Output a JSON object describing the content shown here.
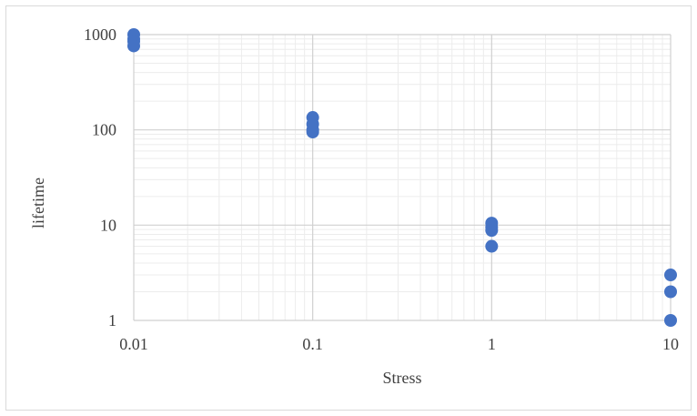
{
  "chart_data": {
    "type": "scatter",
    "title": "",
    "xlabel": "Stress",
    "ylabel": "lifetime",
    "x_scale": "log",
    "y_scale": "log",
    "xlim": [
      0.01,
      10
    ],
    "ylim": [
      1,
      1000
    ],
    "x_ticks": [
      "0.01",
      "0.1",
      "1",
      "10"
    ],
    "y_ticks": [
      "1",
      "10",
      "100",
      "1000"
    ],
    "grid": true,
    "legend": "none",
    "marker_color": "#4472C4",
    "series": [
      {
        "points": [
          {
            "x": 0.01,
            "y": 1000
          },
          {
            "x": 0.01,
            "y": 900
          },
          {
            "x": 0.01,
            "y": 850
          },
          {
            "x": 0.01,
            "y": 760
          },
          {
            "x": 0.1,
            "y": 135
          },
          {
            "x": 0.1,
            "y": 115
          },
          {
            "x": 0.1,
            "y": 100
          },
          {
            "x": 0.1,
            "y": 95
          },
          {
            "x": 1,
            "y": 10.5
          },
          {
            "x": 1,
            "y": 9.5
          },
          {
            "x": 1,
            "y": 8.8
          },
          {
            "x": 1,
            "y": 6
          },
          {
            "x": 10,
            "y": 3
          },
          {
            "x": 10,
            "y": 2
          },
          {
            "x": 10,
            "y": 1
          }
        ]
      }
    ]
  }
}
